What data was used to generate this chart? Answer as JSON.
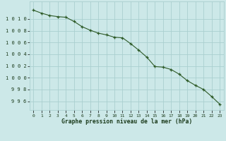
{
  "x": [
    0,
    1,
    2,
    3,
    4,
    5,
    6,
    7,
    8,
    9,
    10,
    11,
    12,
    13,
    14,
    15,
    16,
    17,
    18,
    19,
    20,
    21,
    22,
    23
  ],
  "y": [
    1011.5,
    1011.0,
    1010.6,
    1010.4,
    1010.3,
    1009.6,
    1008.7,
    1008.1,
    1007.6,
    1007.3,
    1006.9,
    1006.8,
    1005.8,
    1004.7,
    1003.5,
    1001.9,
    1001.8,
    1001.4,
    1000.6,
    999.5,
    998.7,
    998.0,
    996.8,
    995.5
  ],
  "line_color": "#2d5a27",
  "marker": "+",
  "marker_color": "#2d5a27",
  "bg_color": "#cce8e8",
  "grid_color": "#aacfcf",
  "xlabel": "Graphe pression niveau de la mer (hPa)",
  "xlabel_color": "#1a3a1a",
  "tick_color": "#1a3a1a",
  "ylim_min": 994.5,
  "ylim_max": 1013.0,
  "xlim_min": -0.5,
  "xlim_max": 23.5,
  "ytick_labels": [
    "996",
    "998",
    "1000",
    "1002",
    "1004",
    "1006",
    "1008",
    "1010"
  ],
  "ytick_values": [
    996,
    998,
    1000,
    1002,
    1004,
    1006,
    1008,
    1010
  ],
  "xticks": [
    0,
    1,
    2,
    3,
    4,
    5,
    6,
    7,
    8,
    9,
    10,
    11,
    12,
    13,
    14,
    15,
    16,
    17,
    18,
    19,
    20,
    21,
    22,
    23
  ]
}
